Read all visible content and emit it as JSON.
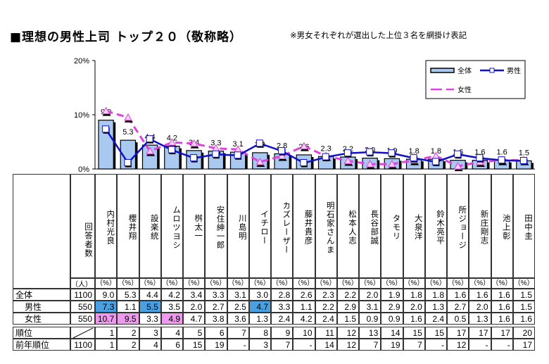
{
  "title": "■理想の男性上司 トップ２０（敬称略）",
  "note": "※男女それぞれが選出した上位３名を網掛け表記",
  "colors": {
    "bar": "#a9c9f1",
    "male": "#1010c8",
    "female": "#dd44dd",
    "male_highlight": "#4aa0e0",
    "female_highlight": "#ee99ee"
  },
  "chart_data": {
    "type": "bar",
    "categories": [
      "内村光良",
      "櫻井翔",
      "設楽統",
      "ムロツヨシ",
      "桝太一",
      "安住紳一郎",
      "川島明",
      "イチロー",
      "カズレーザー",
      "藤井貴彦",
      "明石家さんま",
      "松本人志",
      "長谷部誠",
      "タモリ",
      "大泉洋",
      "鈴木亮平",
      "所ジョージ",
      "新庄剛志",
      "池上彰",
      "田中圭"
    ],
    "ylim": [
      0,
      20
    ],
    "yticks": [
      "0%",
      "10%",
      "20%"
    ],
    "ytick_values": [
      0,
      10,
      20
    ],
    "legend_position": "top-right",
    "series": [
      {
        "name": "全体",
        "kind": "bar",
        "values": [
          9.0,
          5.3,
          4.4,
          4.2,
          3.4,
          3.3,
          3.1,
          3.0,
          2.8,
          2.6,
          2.3,
          2.2,
          2.0,
          1.9,
          1.8,
          1.8,
          1.6,
          1.6,
          1.6,
          1.5
        ]
      },
      {
        "name": "男性",
        "kind": "line",
        "marker": "square",
        "values": [
          7.3,
          1.1,
          5.5,
          3.5,
          2.0,
          2.7,
          2.5,
          4.7,
          3.3,
          1.1,
          2.2,
          2.9,
          3.1,
          2.9,
          2.0,
          1.3,
          2.7,
          2.0,
          1.6,
          1.5
        ]
      },
      {
        "name": "女性",
        "kind": "dashed-line",
        "marker": "triangle",
        "values": [
          10.7,
          9.5,
          3.3,
          4.9,
          4.7,
          3.8,
          3.6,
          1.3,
          2.4,
          4.2,
          2.4,
          1.5,
          0.9,
          0.9,
          1.6,
          2.4,
          0.5,
          1.3,
          1.6,
          1.6
        ]
      }
    ]
  },
  "table": {
    "count_header": "回答者数",
    "unit_count": "（人）",
    "unit_pct": "（%）",
    "rows": [
      {
        "label": "全体",
        "count": "1100",
        "values": [
          "9.0",
          "5.3",
          "4.4",
          "4.2",
          "3.4",
          "3.3",
          "3.1",
          "3.0",
          "2.8",
          "2.6",
          "2.3",
          "2.2",
          "2.0",
          "1.9",
          "1.8",
          "1.8",
          "1.6",
          "1.6",
          "1.6",
          "1.5"
        ],
        "highlight": []
      },
      {
        "label": "男性",
        "count": "550",
        "values": [
          "7.3",
          "1.1",
          "5.5",
          "3.5",
          "2.0",
          "2.7",
          "2.5",
          "4.7",
          "3.3",
          "1.1",
          "2.2",
          "2.9",
          "3.1",
          "2.9",
          "2.0",
          "1.3",
          "2.7",
          "2.0",
          "1.6",
          "1.5"
        ],
        "highlight": [
          0,
          2,
          7
        ]
      },
      {
        "label": "女性",
        "count": "550",
        "values": [
          "10.7",
          "9.5",
          "3.3",
          "4.9",
          "4.7",
          "3.8",
          "3.6",
          "1.3",
          "2.4",
          "4.2",
          "2.4",
          "1.5",
          "0.9",
          "0.9",
          "1.6",
          "2.4",
          "0.5",
          "1.3",
          "1.6",
          "1.6"
        ],
        "highlight": [
          0,
          1,
          3
        ]
      }
    ],
    "rank": {
      "label": "順位",
      "count": "",
      "values": [
        "1",
        "2",
        "3",
        "4",
        "5",
        "6",
        "7",
        "8",
        "9",
        "10",
        "11",
        "12",
        "13",
        "14",
        "15",
        "15",
        "17",
        "17",
        "17",
        "20"
      ]
    },
    "prev_rank": {
      "label": "前年順位",
      "count": "1100",
      "values": [
        "1",
        "2",
        "4",
        "6",
        "15",
        "19",
        "-",
        "3",
        "7",
        "-",
        "14",
        "12",
        "7",
        "19",
        "7",
        "-",
        "12",
        "-",
        "-",
        "17"
      ]
    }
  }
}
